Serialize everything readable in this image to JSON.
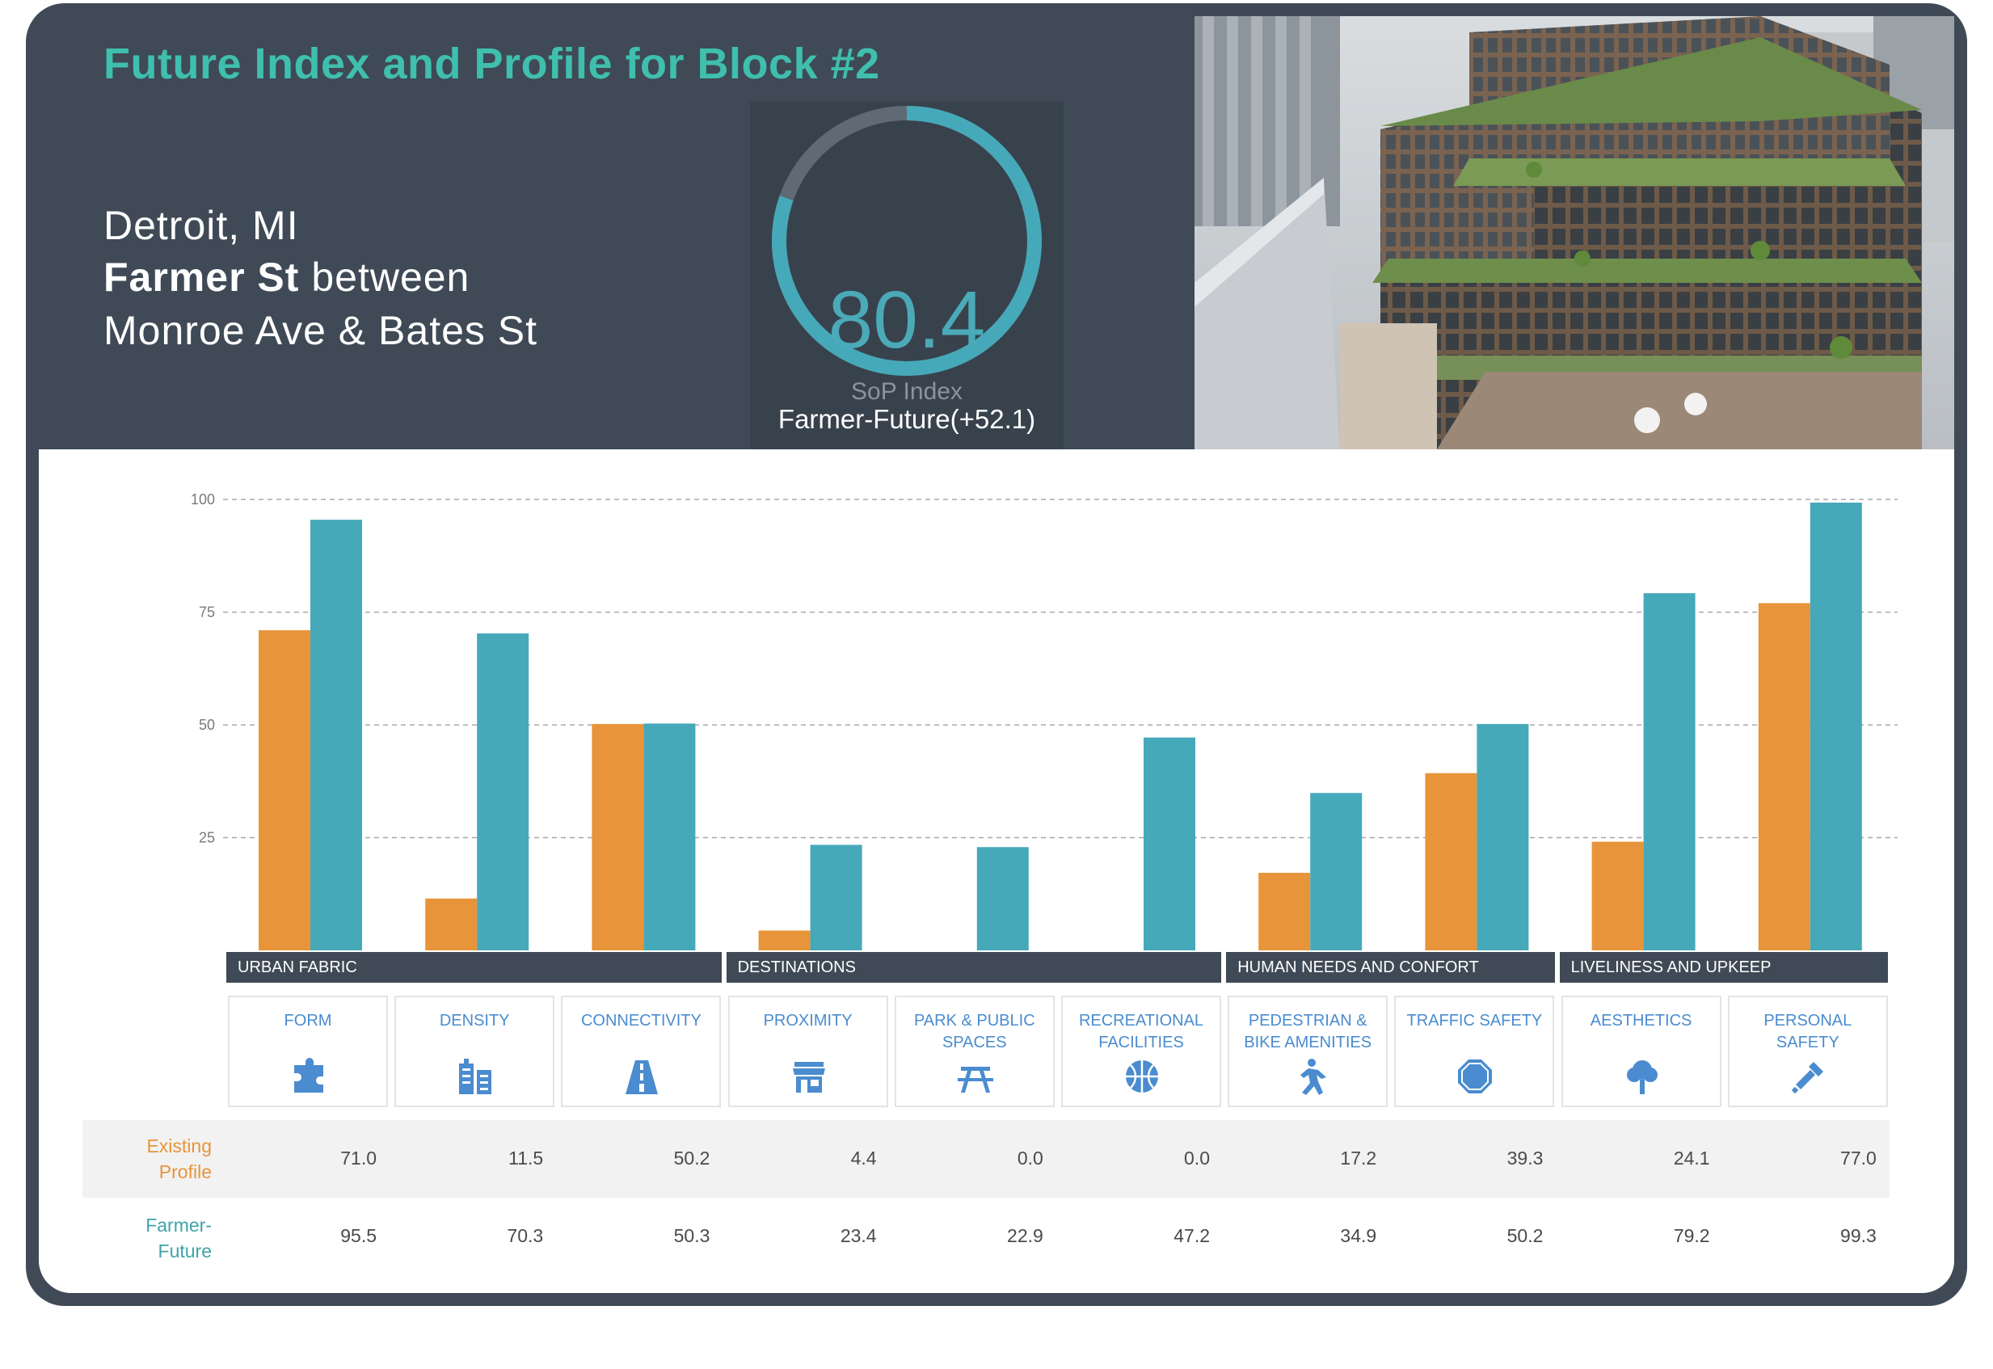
{
  "header": {
    "title": "Future Index and Profile for Block #2",
    "city": "Detroit, MI",
    "street_bold": "Farmer St",
    "street_rest": " between",
    "cross_streets": "Monroe Ave & Bates St"
  },
  "gauge": {
    "value": "80.4",
    "label": "SoP Index",
    "fraction": 0.804,
    "caption": "Farmer-Future(+52.1)"
  },
  "colors": {
    "existing": "#e8943a",
    "future": "#46a9b9",
    "dark": "#3f4a56",
    "accent_title": "#3fbfae",
    "icon_blue": "#4a8ccf"
  },
  "categories": [
    {
      "label": "URBAN FABRIC",
      "span": 3
    },
    {
      "label": "DESTINATIONS",
      "span": 3
    },
    {
      "label": "HUMAN NEEDS AND CONFORT",
      "span": 2
    },
    {
      "label": "LIVELINESS AND UPKEEP",
      "span": 2
    }
  ],
  "subcategories": [
    {
      "label": "FORM",
      "icon": "puzzle-icon"
    },
    {
      "label": "DENSITY",
      "icon": "buildings-icon"
    },
    {
      "label": "CONNECTIVITY",
      "icon": "road-icon"
    },
    {
      "label": "PROXIMITY",
      "icon": "storefront-icon"
    },
    {
      "label": "PARK & PUBLIC SPACES",
      "icon": "picnic-table-icon"
    },
    {
      "label": "RECREATIONAL FACILITIES",
      "icon": "basketball-icon"
    },
    {
      "label": "PEDESTRIAN & BIKE AMENITIES",
      "icon": "pedestrian-icon"
    },
    {
      "label": "TRAFFIC SAFETY",
      "icon": "octagon-icon"
    },
    {
      "label": "AESTHETICS",
      "icon": "tree-icon"
    },
    {
      "label": "PERSONAL SAFETY",
      "icon": "flashlight-icon"
    }
  ],
  "table": {
    "rows": [
      {
        "label_lines": [
          "Existing",
          "Profile"
        ],
        "values": [
          "71.0",
          "11.5",
          "50.2",
          "4.4",
          "0.0",
          "0.0",
          "17.2",
          "39.3",
          "24.1",
          "77.0"
        ]
      },
      {
        "label_lines": [
          "Farmer-",
          "Future"
        ],
        "values": [
          "95.5",
          "70.3",
          "50.3",
          "23.4",
          "22.9",
          "47.2",
          "34.9",
          "50.2",
          "79.2",
          "99.3"
        ]
      }
    ]
  },
  "chart_data": {
    "type": "bar",
    "categories": [
      "FORM",
      "DENSITY",
      "CONNECTIVITY",
      "PROXIMITY",
      "PARK & PUBLIC SPACES",
      "RECREATIONAL FACILITIES",
      "PEDESTRIAN & BIKE AMENITIES",
      "TRAFFIC SAFETY",
      "AESTHETICS",
      "PERSONAL SAFETY"
    ],
    "series": [
      {
        "name": "Existing Profile",
        "values": [
          71.0,
          11.5,
          50.2,
          4.4,
          0.0,
          0.0,
          17.2,
          39.3,
          24.1,
          77.0
        ]
      },
      {
        "name": "Farmer-Future",
        "values": [
          95.5,
          70.3,
          50.3,
          23.4,
          22.9,
          47.2,
          34.9,
          50.2,
          79.2,
          99.3
        ]
      }
    ],
    "ylim": [
      0,
      100
    ],
    "yticks": [
      "25",
      "50",
      "75",
      "100"
    ],
    "grid": true,
    "title": "",
    "xlabel": "",
    "ylabel": ""
  }
}
